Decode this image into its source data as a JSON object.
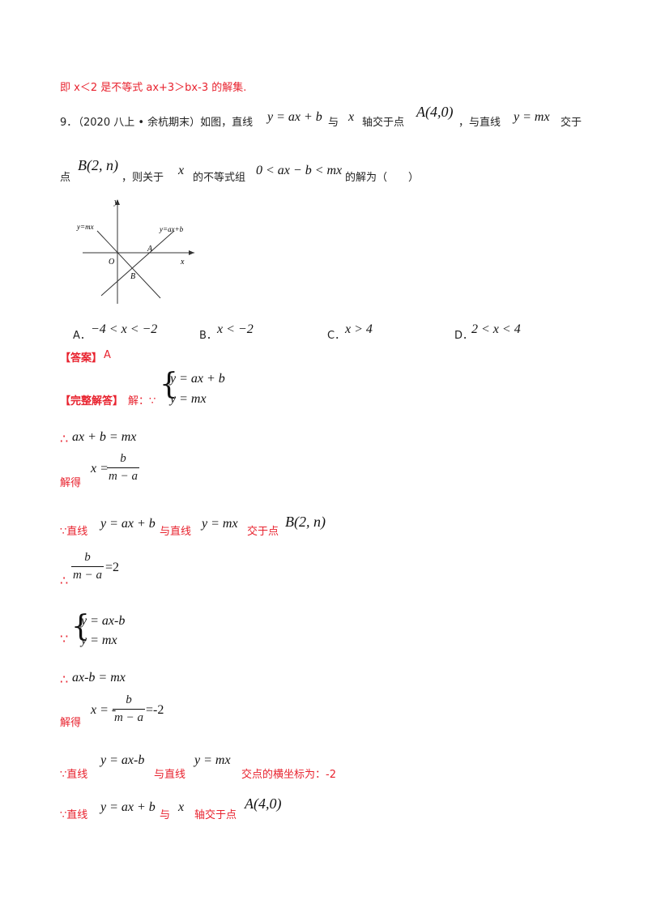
{
  "top_line": "即 x＜2 是不等式 ax+3＞bx-3 的解集.",
  "question": {
    "number": "9．",
    "source": "（2020 八上 • 余杭期末）如图，直线",
    "eq1": "y = ax + b",
    "t1": "与",
    "x_var": "x",
    "t2": "轴交于点",
    "pointA": "A(4,0)",
    "t3": "，与直线",
    "eq2": "y = mx",
    "t4": "交于",
    "t5": "点",
    "pointB": "B(2, n)",
    "t6": "，则关于",
    "t7": "的不等式组",
    "inequality": "0 < ax − b < mx",
    "t8": "的解为（　　）"
  },
  "figure": {
    "label_y": "y",
    "label_x": "x",
    "label_ymx": "y=mx",
    "label_yaxb": "y=ax+b",
    "label_O": "O",
    "label_A": "A",
    "label_B": "B"
  },
  "options": [
    {
      "letter": "A．",
      "expr": "−4 < x < −2"
    },
    {
      "letter": "B．",
      "expr": "x < −2"
    },
    {
      "letter": "C．",
      "expr": "x > 4"
    },
    {
      "letter": "D．",
      "expr": "2 < x < 4"
    }
  ],
  "answer": {
    "label": "【答案】",
    "value": "A"
  },
  "solution": {
    "label": "【完整解答】",
    "jie": "解：∵",
    "sys1_a": "y = ax + b",
    "sys1_b": "y = mx",
    "therefore": "∴",
    "step1": "ax + b = mx",
    "jiede": "解得",
    "x_eq": "x =",
    "frac_num": "b",
    "frac_den": "m − a",
    "because": "∵直线",
    "line1": "y = ax + b",
    "yuzhixian": "与直线",
    "line2": "y = mx",
    "jiaoyudian": "交于点",
    "pointB": "B(2, n)",
    "eq_2": "=2",
    "sys2_a": "y = ax-b",
    "sys2_b": "y = mx",
    "step2": "ax-b = mx",
    "x_eq2": "x = -",
    "eq_m2": "=-2",
    "line3": "y = ax-b",
    "intersect_text": "交点的横坐标为：-2",
    "yu": "与",
    "axis_text": "轴交于点",
    "pointA": "A(4,0)"
  }
}
